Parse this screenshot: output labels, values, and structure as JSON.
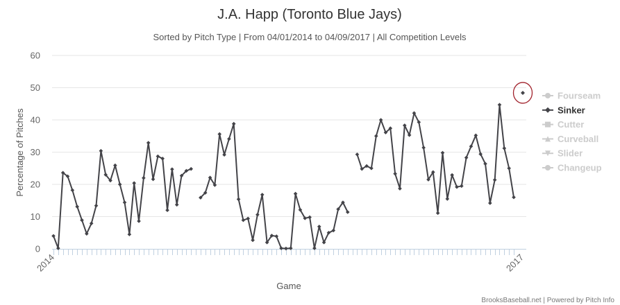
{
  "chart_data": {
    "type": "line",
    "title": "J.A. Happ (Toronto Blue Jays)",
    "subtitle": "Sorted by Pitch Type | From 04/01/2014 to 04/09/2017 | All Competition Levels",
    "xlabel": "Game",
    "ylabel": "Percentage of Pitches",
    "ylim": [
      0,
      60
    ],
    "yticks": [
      "0",
      "10",
      "20",
      "30",
      "40",
      "50",
      "60"
    ],
    "xtick_labels": [
      "2014",
      "2017"
    ],
    "grid": true,
    "legend_position": "right",
    "colors": {
      "series": "#434348",
      "inactive": "#cccccc",
      "active_legend": "#333333",
      "highlight_ring": "#a0202a",
      "grid": "#e6e6e6",
      "axis": "#c0d0e0"
    },
    "series": [
      {
        "name": "Fourseam",
        "visible": false,
        "symbol": "circle",
        "values": []
      },
      {
        "name": "Sinker",
        "visible": true,
        "symbol": "diamond",
        "values": [
          4.0,
          0.2,
          23.6,
          22.5,
          18.2,
          13.1,
          8.9,
          4.7,
          7.9,
          13.4,
          30.4,
          23.0,
          21.2,
          25.9,
          20.0,
          14.4,
          4.5,
          20.4,
          8.6,
          22.0,
          32.9,
          21.6,
          28.7,
          28.0,
          12.0,
          24.7,
          13.7,
          22.7,
          24.2,
          24.8,
          null,
          15.9,
          17.4,
          22.1,
          19.8,
          35.6,
          29.2,
          34.1,
          38.8,
          15.4,
          8.9,
          9.4,
          2.7,
          10.6,
          16.8,
          2.0,
          4.1,
          3.9,
          0.2,
          0.1,
          0.2,
          17.1,
          12.1,
          9.5,
          9.8,
          0.2,
          6.9,
          2.0,
          5.0,
          5.7,
          12.3,
          14.4,
          11.4,
          null,
          29.3,
          24.8,
          25.7,
          25.0,
          35.0,
          40.0,
          36.1,
          37.4,
          23.3,
          18.7,
          38.3,
          35.3,
          42.1,
          39.3,
          31.4,
          21.5,
          23.8,
          11.1,
          29.8,
          15.5,
          22.9,
          19.2,
          19.5,
          28.3,
          31.8,
          35.2,
          29.4,
          26.4,
          14.2,
          21.4,
          44.7,
          31.2,
          25.0,
          16.0
        ]
      },
      {
        "name": "Cutter",
        "visible": false,
        "symbol": "square",
        "values": []
      },
      {
        "name": "Curveball",
        "visible": false,
        "symbol": "triangle",
        "values": []
      },
      {
        "name": "Slider",
        "visible": false,
        "symbol": "triangle-down",
        "values": []
      },
      {
        "name": "Changeup",
        "visible": false,
        "symbol": "circle",
        "values": []
      }
    ],
    "credit": "BrooksBaseball.net | Powered by Pitch Info"
  }
}
